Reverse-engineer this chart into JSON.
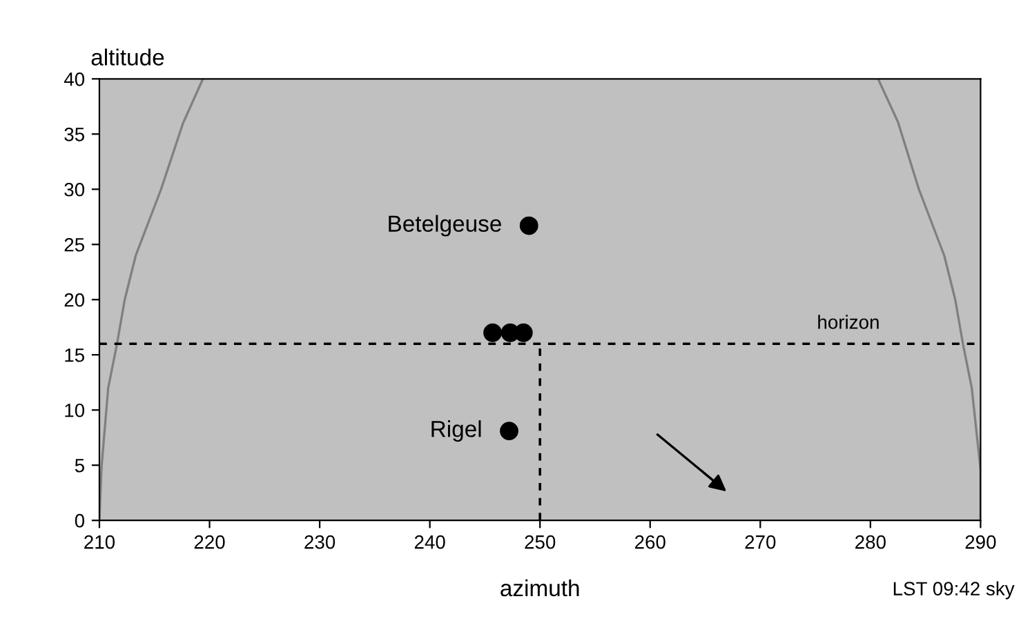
{
  "chart_data": {
    "type": "scatter",
    "xlabel": "azimuth",
    "ylabel": "altitude",
    "xlim": [
      210,
      290
    ],
    "ylim": [
      0,
      40
    ],
    "xticks": [
      210,
      220,
      230,
      240,
      250,
      260,
      270,
      280,
      290
    ],
    "yticks": [
      0,
      5,
      10,
      15,
      20,
      25,
      30,
      35,
      40
    ],
    "grid": false,
    "legend": false,
    "marker": "circle",
    "series": [
      {
        "type": "line",
        "color": "#808080",
        "marker": "none",
        "x": [
          210,
          210.2,
          210.8,
          211.6,
          212.3,
          213.3,
          215.6,
          217.6,
          219.4
        ],
        "values": [
          0,
          4.9,
          12,
          16,
          20,
          24,
          30,
          36,
          40
        ]
      },
      {
        "type": "line",
        "color": "#808080",
        "marker": "none",
        "x": [
          290,
          290,
          289.2,
          288.4,
          287.7,
          286.7,
          284.4,
          282.5,
          280.7
        ],
        "values": [
          0,
          4.6,
          12,
          16,
          20,
          24,
          30,
          36.1,
          40
        ]
      },
      {
        "type": "line",
        "color": "#000000",
        "marker": "none",
        "line_style": "dotted",
        "x": [
          250,
          250
        ],
        "values": [
          0,
          16
        ]
      },
      {
        "color": "#000000",
        "x": [
          249,
          245.7,
          247.3,
          248.5,
          247.2
        ],
        "values": [
          26.7,
          17,
          17,
          17,
          8.1
        ]
      }
    ],
    "ref_lines": [
      {
        "axis": "y",
        "value": 16,
        "label": "horizon",
        "color": "#000000",
        "line_style": "dotted"
      }
    ],
    "annotations": [
      {
        "text": "Betelgeuse",
        "x": 249,
        "y": 26.7
      },
      {
        "text": "Rigel",
        "x": 247.2,
        "y": 8.1
      },
      "LST 09:42 sky"
    ]
  }
}
